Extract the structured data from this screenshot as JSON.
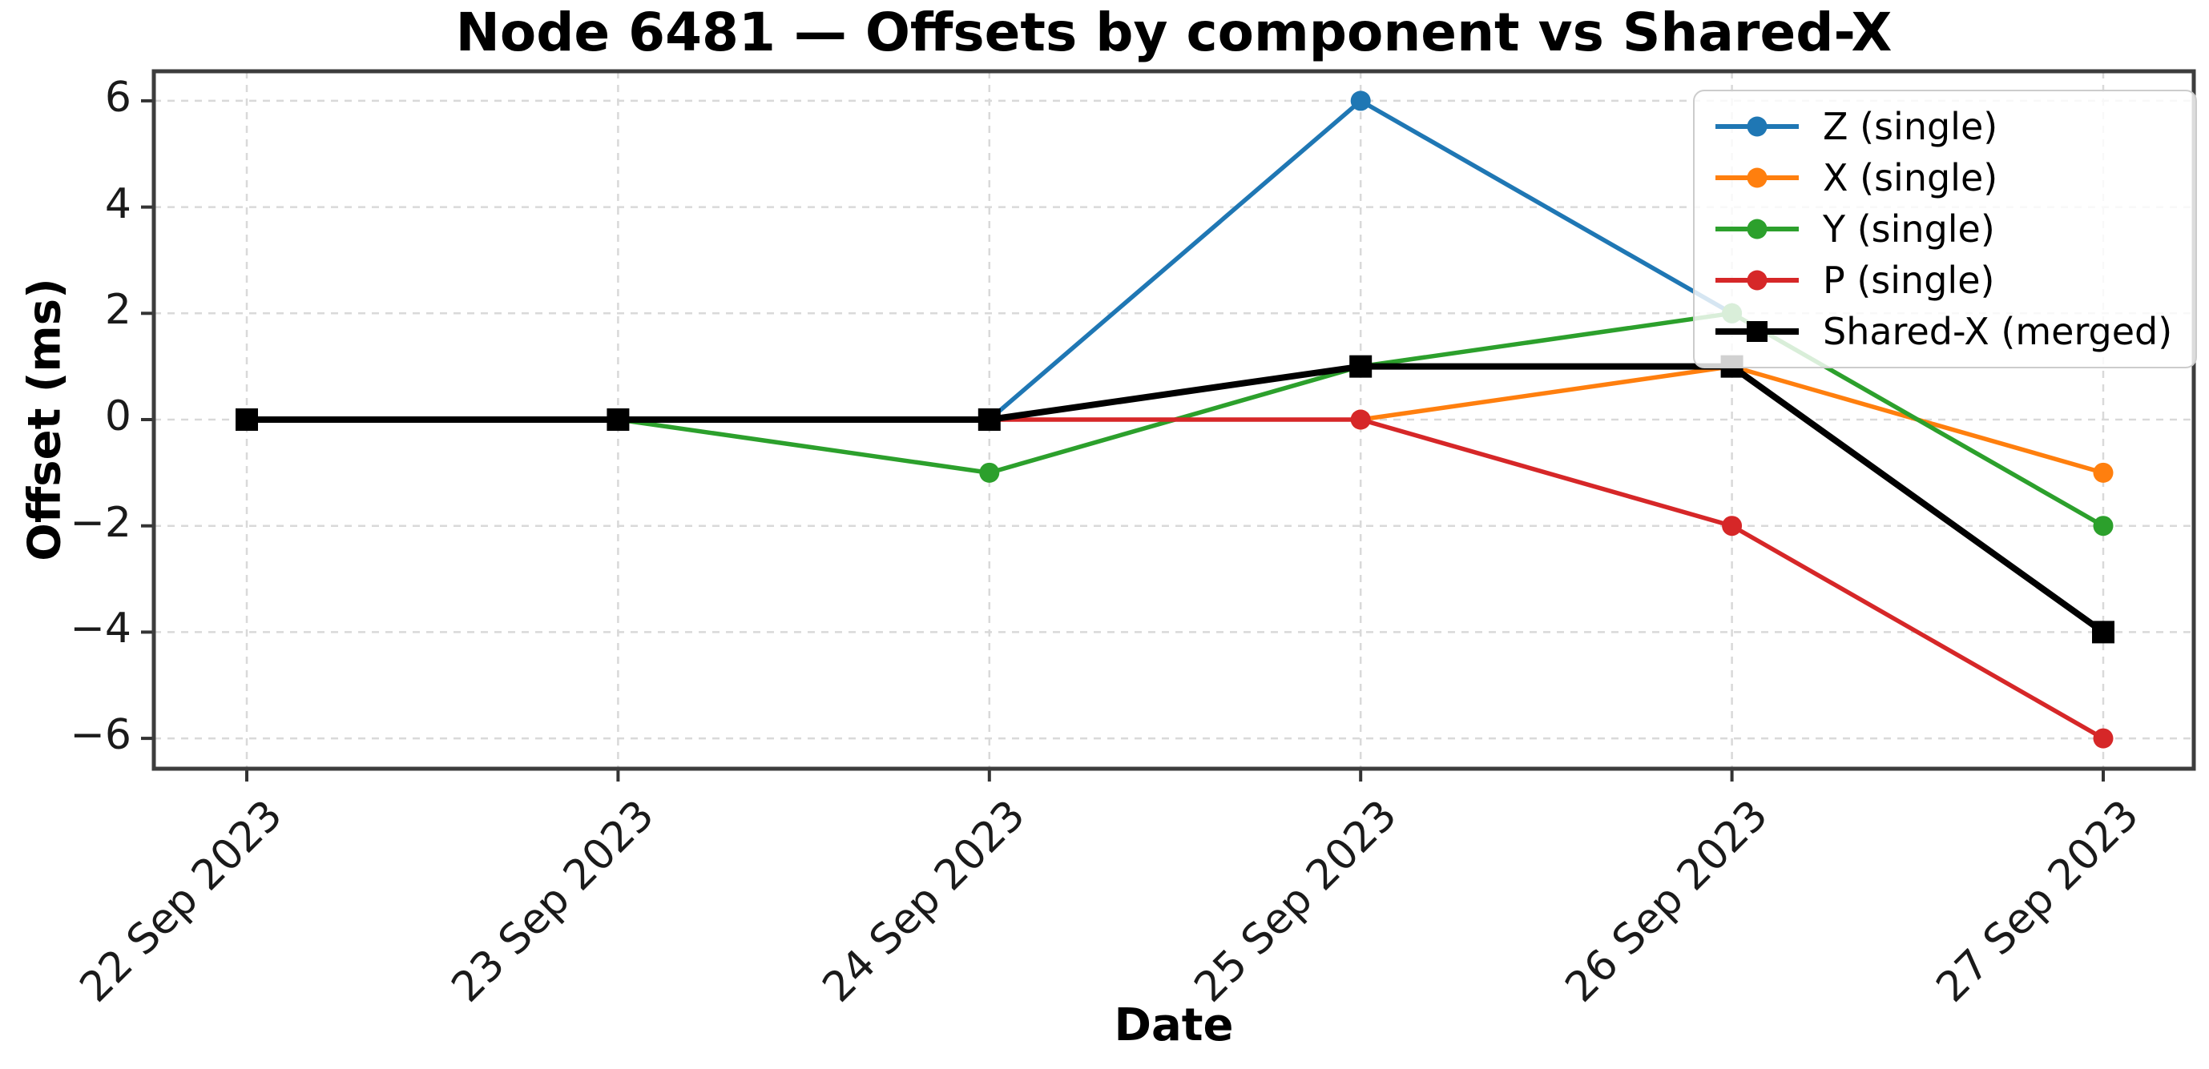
{
  "chart_data": {
    "type": "line",
    "title": "Node 6481 — Offsets by component vs Shared-X",
    "xlabel": "Date",
    "ylabel": "Offset (ms)",
    "categories": [
      "22 Sep 2023",
      "23 Sep 2023",
      "24 Sep 2023",
      "25 Sep 2023",
      "26 Sep 2023",
      "27 Sep 2023"
    ],
    "yticks": [
      6,
      4,
      2,
      0,
      -2,
      -4,
      -6
    ],
    "ytick_labels": [
      "6",
      "4",
      "2",
      "0",
      "−2",
      "−4",
      "−6"
    ],
    "ylim": [
      -6.6,
      6.6
    ],
    "grid": true,
    "grid_style": "dashed",
    "legend_position": "upper right",
    "series": [
      {
        "name": "Z (single)",
        "color": "#1f77b4",
        "marker": "circle",
        "values": [
          null,
          null,
          0,
          6,
          2,
          null
        ]
      },
      {
        "name": "X (single)",
        "color": "#ff7f0e",
        "marker": "circle",
        "values": [
          null,
          null,
          null,
          0,
          1,
          -1
        ]
      },
      {
        "name": "Y (single)",
        "color": "#2ca02c",
        "marker": "circle",
        "values": [
          null,
          0,
          -1,
          1,
          2,
          -2
        ]
      },
      {
        "name": "P (single)",
        "color": "#d62728",
        "marker": "circle",
        "values": [
          null,
          null,
          0,
          0,
          -2,
          -6
        ]
      },
      {
        "name": "Shared-X (merged)",
        "color": "#000000",
        "marker": "square",
        "values": [
          0,
          0,
          0,
          1,
          1,
          -4
        ]
      }
    ],
    "colors": {
      "spine": "#3d3d3d",
      "tick": "#333333",
      "grid": "#d9d9d9",
      "background": "#ffffff"
    }
  }
}
